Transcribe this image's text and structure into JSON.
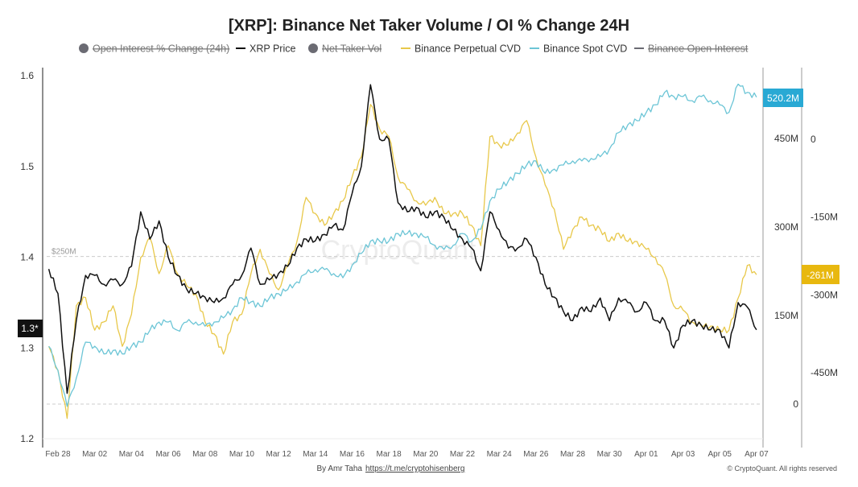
{
  "chart_data": {
    "type": "line",
    "title": "[XRP]: Binance Net Taker Volume / OI % Change 24H",
    "legend_placement": "top",
    "legend": [
      {
        "name": "Open Interest % Change (24h)",
        "hidden": true,
        "marker": "circle",
        "color": "#6b6b73"
      },
      {
        "name": "XRP Price",
        "hidden": false,
        "marker": "line",
        "color": "#111111"
      },
      {
        "name": "Net Taker Vol",
        "hidden": true,
        "marker": "circle",
        "color": "#6b6b73"
      },
      {
        "name": "Binance Perpetual CVD",
        "hidden": false,
        "marker": "line",
        "color": "#e8c84a"
      },
      {
        "name": "Binance Spot CVD",
        "hidden": false,
        "marker": "line",
        "color": "#6cc5d6"
      },
      {
        "name": "Binance Open Interest",
        "hidden": true,
        "marker": "line",
        "color": "#6b6b73"
      }
    ],
    "x_ticks": [
      "Feb 28",
      "Mar 02",
      "Mar 04",
      "Mar 06",
      "Mar 08",
      "Mar 10",
      "Mar 12",
      "Mar 14",
      "Mar 16",
      "Mar 18",
      "Mar 20",
      "Mar 22",
      "Mar 24",
      "Mar 26",
      "Mar 28",
      "Mar 30",
      "Apr 01",
      "Apr 03",
      "Apr 05",
      "Apr 07"
    ],
    "y_left": {
      "ticks": [
        "1.6",
        "1.5",
        "1.4",
        "1.3",
        "1.2"
      ],
      "range": [
        1.2,
        1.6
      ],
      "current_label": "1.3*"
    },
    "y_mid": {
      "ticks": [
        "450M",
        "300M",
        "150M",
        "0"
      ],
      "range_millions": [
        0,
        450
      ],
      "current_label": "520.2M"
    },
    "y_right": {
      "ticks": [
        "0",
        "-150M",
        "-300M",
        "-450M"
      ],
      "range_millions": [
        -450,
        0
      ],
      "current_label": "-261M"
    },
    "reference_line": {
      "label": "$250M",
      "value_millions": 250
    },
    "grid": false,
    "x": [
      "Feb 27 12:00",
      "Feb 28 00:00",
      "Feb 28 12:00",
      "Mar 01 00:00",
      "Mar 01 12:00",
      "Mar 02 00:00",
      "Mar 02 12:00",
      "Mar 03 00:00",
      "Mar 03 12:00",
      "Mar 04 00:00",
      "Mar 04 12:00",
      "Mar 05 00:00",
      "Mar 05 12:00",
      "Mar 06 00:00",
      "Mar 06 12:00",
      "Mar 07 00:00",
      "Mar 07 12:00",
      "Mar 08 00:00",
      "Mar 08 12:00",
      "Mar 09 00:00",
      "Mar 09 12:00",
      "Mar 10 00:00",
      "Mar 10 12:00",
      "Mar 11 00:00",
      "Mar 11 12:00",
      "Mar 12 00:00",
      "Mar 12 12:00",
      "Mar 13 00:00",
      "Mar 13 12:00",
      "Mar 14 00:00",
      "Mar 14 12:00",
      "Mar 15 00:00",
      "Mar 15 12:00",
      "Mar 16 00:00",
      "Mar 16 12:00",
      "Mar 17 00:00",
      "Mar 17 12:00",
      "Mar 18 00:00",
      "Mar 18 12:00",
      "Mar 19 00:00",
      "Mar 19 12:00",
      "Mar 20 00:00",
      "Mar 20 12:00",
      "Mar 21 00:00",
      "Mar 21 12:00",
      "Mar 22 00:00",
      "Mar 22 12:00",
      "Mar 23 00:00",
      "Mar 23 12:00",
      "Mar 24 00:00",
      "Mar 24 12:00",
      "Mar 25 00:00",
      "Mar 25 12:00",
      "Mar 26 00:00",
      "Mar 26 12:00",
      "Mar 27 00:00",
      "Mar 27 12:00",
      "Mar 28 00:00",
      "Mar 28 12:00",
      "Mar 29 00:00",
      "Mar 29 12:00",
      "Mar 30 00:00",
      "Mar 30 12:00",
      "Mar 31 00:00",
      "Mar 31 12:00",
      "Apr 01 00:00",
      "Apr 01 12:00",
      "Apr 02 00:00",
      "Apr 02 12:00",
      "Apr 03 00:00",
      "Apr 03 12:00",
      "Apr 04 00:00",
      "Apr 04 12:00",
      "Apr 05 00:00",
      "Apr 05 12:00",
      "Apr 06 00:00",
      "Apr 06 12:00",
      "Apr 07 00:00"
    ],
    "series": [
      {
        "name": "XRP Price",
        "axis": "left",
        "color": "#111111",
        "values": [
          1.387,
          1.36,
          1.25,
          1.33,
          1.38,
          1.38,
          1.37,
          1.375,
          1.37,
          1.39,
          1.45,
          1.42,
          1.44,
          1.4,
          1.38,
          1.365,
          1.36,
          1.356,
          1.35,
          1.355,
          1.37,
          1.38,
          1.41,
          1.37,
          1.375,
          1.382,
          1.39,
          1.41,
          1.42,
          1.418,
          1.425,
          1.435,
          1.43,
          1.47,
          1.5,
          1.59,
          1.53,
          1.53,
          1.46,
          1.45,
          1.455,
          1.444,
          1.45,
          1.444,
          1.43,
          1.42,
          1.41,
          1.385,
          1.45,
          1.43,
          1.41,
          1.41,
          1.42,
          1.4,
          1.37,
          1.356,
          1.34,
          1.33,
          1.345,
          1.34,
          1.355,
          1.33,
          1.355,
          1.35,
          1.34,
          1.35,
          1.33,
          1.33,
          1.3,
          1.325,
          1.33,
          1.325,
          1.32,
          1.32,
          1.3,
          1.35,
          1.345,
          1.32
        ]
      },
      {
        "name": "Binance Perpetual CVD",
        "axis": "right",
        "unit": "M",
        "color": "#e8c84a",
        "values": [
          -399,
          -445,
          -538,
          -321,
          -305,
          -368,
          -352,
          -321,
          -399,
          -337,
          -228,
          -189,
          -259,
          -205,
          -259,
          -282,
          -298,
          -352,
          -375,
          -414,
          -352,
          -337,
          -259,
          -212,
          -259,
          -290,
          -243,
          -197,
          -112,
          -143,
          -166,
          -143,
          -119,
          -73,
          -34,
          67,
          20,
          5,
          -73,
          -96,
          -119,
          -127,
          -112,
          -143,
          -143,
          -143,
          -166,
          -205,
          5,
          -11,
          -11,
          12,
          36,
          -34,
          -88,
          -135,
          -212,
          -174,
          -150,
          -166,
          -174,
          -197,
          -181,
          -197,
          -197,
          -212,
          -228,
          -259,
          -321,
          -329,
          -352,
          -360,
          -360,
          -368,
          -368,
          -306,
          -243,
          -261
        ]
      },
      {
        "name": "Binance Spot CVD",
        "axis": "mid",
        "unit": "M",
        "color": "#6cc5d6",
        "values": [
          98,
          57,
          -4,
          44,
          105,
          98,
          85,
          91,
          85,
          98,
          105,
          125,
          139,
          139,
          125,
          139,
          139,
          132,
          139,
          146,
          160,
          180,
          173,
          166,
          180,
          187,
          194,
          207,
          221,
          228,
          228,
          221,
          214,
          235,
          255,
          276,
          276,
          276,
          289,
          289,
          289,
          282,
          269,
          262,
          269,
          289,
          276,
          296,
          344,
          364,
          378,
          391,
          405,
          412,
          391,
          398,
          405,
          412,
          412,
          416,
          419,
          432,
          460,
          473,
          480,
          494,
          507,
          528,
          521,
          521,
          514,
          521,
          514,
          507,
          494,
          542,
          528,
          520
        ]
      }
    ]
  },
  "watermark": "CryptoQuant",
  "footer": {
    "author": "By Amr Taha",
    "link": "https://t.me/cryptohisenberg",
    "copyright": "© CryptoQuant. All rights reserved"
  }
}
